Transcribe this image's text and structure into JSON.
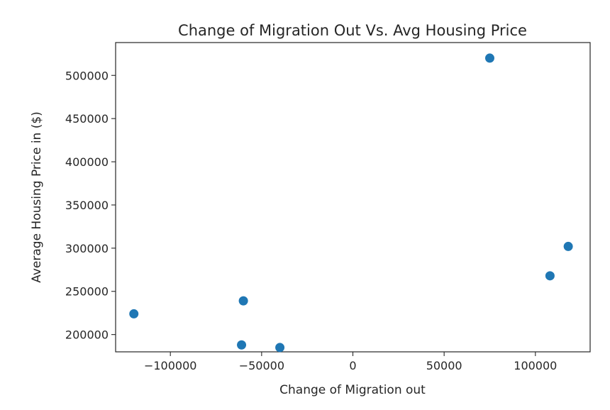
{
  "chart_data": {
    "type": "scatter",
    "title": "Change of Migration Out Vs. Avg Housing Price",
    "xlabel": "Change of Migration out",
    "ylabel": "Average Housing Price in ($)",
    "xlim": [
      -130000,
      130000
    ],
    "ylim": [
      180000,
      538000
    ],
    "xticks": [
      -100000,
      -50000,
      0,
      50000,
      100000
    ],
    "xtick_labels": [
      "−100000",
      "−50000",
      "0",
      "50000",
      "100000"
    ],
    "yticks": [
      200000,
      250000,
      300000,
      350000,
      400000,
      450000,
      500000
    ],
    "ytick_labels": [
      "200000",
      "250000",
      "300000",
      "350000",
      "400000",
      "450000",
      "500000"
    ],
    "grid": false,
    "legend": "none",
    "color": "#1f77b4",
    "points": [
      {
        "x": -120000,
        "y": 224000
      },
      {
        "x": -60000,
        "y": 239000
      },
      {
        "x": -61000,
        "y": 188000
      },
      {
        "x": -40000,
        "y": 185000
      },
      {
        "x": 75000,
        "y": 520000
      },
      {
        "x": 108000,
        "y": 268000
      },
      {
        "x": 118000,
        "y": 302000
      }
    ]
  }
}
